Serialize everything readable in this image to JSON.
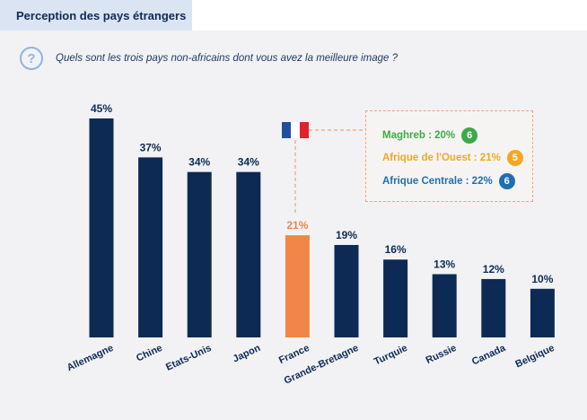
{
  "header": {
    "title": "Perception des pays étrangers"
  },
  "question": {
    "icon": "question-circle-icon",
    "text": "Quels sont les trois pays non-africains dont vous avez la meilleure image ?"
  },
  "colors": {
    "bar": "#0d2a55",
    "highlight": "#f08648",
    "maghreb": "#3daa4a",
    "ouest": "#f5a623",
    "centrale": "#1f6fb5"
  },
  "chart_data": {
    "type": "bar",
    "categories": [
      "Allemagne",
      "Chine",
      "Etats-Unis",
      "Japon",
      "France",
      "Grande-Bretagne",
      "Turquie",
      "Russie",
      "Canada",
      "Belgique"
    ],
    "values": [
      45,
      37,
      34,
      34,
      21,
      19,
      16,
      13,
      12,
      10
    ],
    "value_labels": [
      "45%",
      "37%",
      "34%",
      "34%",
      "21%",
      "19%",
      "16%",
      "13%",
      "12%",
      "10%"
    ],
    "highlight_category": "France",
    "ylim": [
      0,
      50
    ],
    "grid": false,
    "legend": "none"
  },
  "callout": {
    "rows": [
      {
        "label": "Maghreb : 20%",
        "badge": "6",
        "color": "#3daa4a"
      },
      {
        "label": "Afrique de l'Ouest : 21%",
        "badge": "5",
        "color": "#f5a623"
      },
      {
        "label": "Afrique Centrale : 22%",
        "badge": "6",
        "color": "#1f6fb5"
      }
    ]
  }
}
